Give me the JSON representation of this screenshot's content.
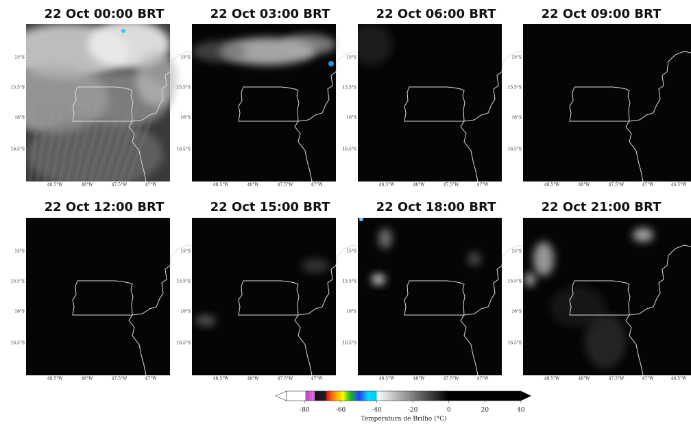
{
  "panels": [
    {
      "title": "22 Oct 00:00 BRT",
      "x_tick_labels": [
        "48.5°W",
        "48°W",
        "47.5°W",
        "47°W"
      ]
    },
    {
      "title": "22 Oct 03:00 BRT",
      "x_tick_labels": [
        "48.5°W",
        "48°W",
        "47.5°W",
        "47°W"
      ]
    },
    {
      "title": "22 Oct 06:00 BRT",
      "x_tick_labels": [
        "48.5°W",
        "48°W",
        "47.5°W",
        "47°W"
      ]
    },
    {
      "title": "22 Oct 09:00 BRT",
      "x_tick_labels": [
        "48.5°W",
        "48°W",
        "47.5°W",
        "47°W",
        "46.5°W"
      ]
    },
    {
      "title": "22 Oct 12:00 BRT",
      "x_tick_labels": [
        "48.5°W",
        "48°W",
        "47.5°W",
        "47°W"
      ]
    },
    {
      "title": "22 Oct 15:00 BRT",
      "x_tick_labels": [
        "48.5°W",
        "48°W",
        "47.5°W",
        "47°W"
      ]
    },
    {
      "title": "22 Oct 18:00 BRT",
      "x_tick_labels": [
        "48.5°W",
        "48°W",
        "47.5°W",
        "47°W"
      ]
    },
    {
      "title": "22 Oct 21:00 BRT",
      "x_tick_labels": [
        "48.5°W",
        "48°W",
        "47.5°W",
        "47°W",
        "46.5°W"
      ]
    }
  ],
  "y_tick_labels": [
    "15°S",
    "15.5°S",
    "16°S",
    "16.5°S"
  ],
  "colorbar": {
    "label": "Temperatura de Brilho (°C)",
    "lim": [
      -90,
      40
    ],
    "ticks": [
      -80,
      -60,
      -40,
      -20,
      0,
      20,
      40
    ]
  }
}
